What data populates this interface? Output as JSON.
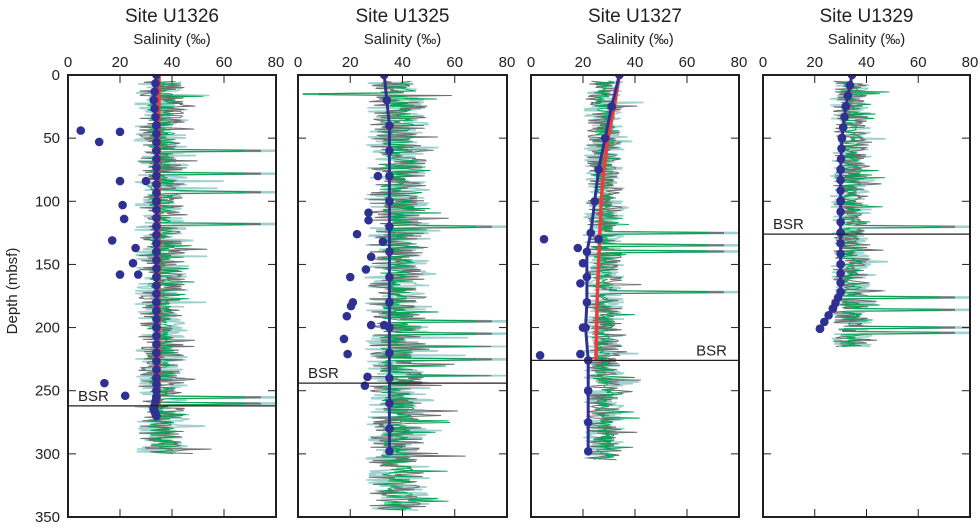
{
  "chart_data": [
    {
      "type": "scatter",
      "title": "Site U1326",
      "xlabel": "Salinity (‰)",
      "ylabel": "Depth (mbsf)",
      "xlim": [
        0,
        80
      ],
      "ylim": [
        350,
        0
      ],
      "xticks": [
        "0",
        "20",
        "40",
        "60",
        "80"
      ],
      "yticks": [
        "0",
        "50",
        "100",
        "150",
        "200",
        "250",
        "300",
        "350"
      ],
      "bsr": {
        "label": "BSR",
        "depth": 262,
        "label_side": "left"
      },
      "log_trace": {
        "depth_range": [
          5,
          300
        ],
        "base": 36,
        "spread": 9,
        "spikes": [
          [
            60,
            80
          ],
          [
            78,
            80
          ],
          [
            93,
            80
          ],
          [
            118,
            80
          ],
          [
            255,
            80
          ],
          [
            260,
            80
          ]
        ]
      },
      "red_line": [
        [
          0,
          35
        ],
        [
          262,
          35
        ]
      ],
      "blue_profile": [
        [
          0,
          34
        ],
        [
          20,
          33
        ],
        [
          40,
          34
        ],
        [
          60,
          34
        ],
        [
          80,
          34
        ],
        [
          100,
          34
        ],
        [
          120,
          34
        ],
        [
          140,
          34
        ],
        [
          160,
          34
        ],
        [
          180,
          34
        ],
        [
          200,
          34
        ],
        [
          220,
          34
        ],
        [
          240,
          34
        ],
        [
          255,
          34
        ],
        [
          265,
          33
        ],
        [
          270,
          34
        ]
      ],
      "outliers": [
        [
          4.9,
          44
        ],
        [
          12,
          53
        ],
        [
          20,
          45
        ],
        [
          20,
          84
        ],
        [
          30,
          84
        ],
        [
          21,
          103
        ],
        [
          21.6,
          114
        ],
        [
          17,
          131
        ],
        [
          26,
          137
        ],
        [
          25,
          149
        ],
        [
          20,
          158
        ],
        [
          27,
          158
        ],
        [
          14,
          244
        ],
        [
          22,
          254
        ]
      ]
    },
    {
      "type": "scatter",
      "title": "Site U1325",
      "xlabel": "Salinity (‰)",
      "ylabel": "",
      "xlim": [
        0,
        80
      ],
      "ylim": [
        350,
        0
      ],
      "xticks": [
        "0",
        "20",
        "40",
        "60",
        "80"
      ],
      "bsr": {
        "label": "BSR",
        "depth": 244,
        "label_side": "left"
      },
      "log_trace": {
        "depth_range": [
          5,
          345
        ],
        "base": 38,
        "spread": 11,
        "spikes": [
          [
            15,
            14
          ],
          [
            120,
            80
          ],
          [
            195,
            80
          ],
          [
            205,
            80
          ],
          [
            215,
            80
          ],
          [
            225,
            80
          ],
          [
            238,
            80
          ]
        ]
      },
      "red_line": [],
      "blue_profile": [
        [
          0,
          33
        ],
        [
          20,
          34
        ],
        [
          40,
          35
        ],
        [
          60,
          35
        ],
        [
          80,
          35
        ],
        [
          100,
          35
        ],
        [
          120,
          35
        ],
        [
          140,
          35
        ],
        [
          160,
          35
        ],
        [
          180,
          35
        ],
        [
          200,
          35
        ],
        [
          220,
          35
        ],
        [
          240,
          35
        ],
        [
          260,
          35
        ],
        [
          280,
          35
        ],
        [
          298,
          35
        ]
      ],
      "outliers": [
        [
          30.6,
          80
        ],
        [
          27,
          109
        ],
        [
          27,
          115
        ],
        [
          22.6,
          126
        ],
        [
          32.5,
          132
        ],
        [
          28,
          144
        ],
        [
          26,
          154
        ],
        [
          20,
          160
        ],
        [
          21,
          180
        ],
        [
          20.3,
          183
        ],
        [
          18.7,
          191
        ],
        [
          28,
          198
        ],
        [
          33,
          198
        ],
        [
          17.6,
          209
        ],
        [
          19,
          221
        ],
        [
          26.6,
          239
        ],
        [
          25.6,
          246
        ]
      ]
    },
    {
      "type": "scatter",
      "title": "Site U1327",
      "xlabel": "Salinity (‰)",
      "ylabel": "",
      "xlim": [
        0,
        80
      ],
      "ylim": [
        350,
        0
      ],
      "xticks": [
        "0",
        "20",
        "40",
        "60",
        "80"
      ],
      "bsr": {
        "label": "BSR",
        "depth": 226,
        "label_side": "right"
      },
      "log_trace": {
        "depth_range": [
          5,
          305
        ],
        "base": 28,
        "spread": 7,
        "spikes": [
          [
            125,
            80
          ],
          [
            135,
            80
          ],
          [
            140,
            80
          ],
          [
            172,
            80
          ]
        ]
      },
      "red_line": [
        [
          0,
          34
        ],
        [
          25,
          32
        ],
        [
          50,
          29.6
        ],
        [
          75,
          28
        ],
        [
          100,
          27
        ],
        [
          125,
          26.5
        ],
        [
          150,
          26
        ],
        [
          175,
          25.5
        ],
        [
          200,
          25.2
        ],
        [
          226,
          25
        ]
      ],
      "blue_profile": [
        [
          0,
          34
        ],
        [
          25,
          31
        ],
        [
          50,
          28.5
        ],
        [
          75,
          26
        ],
        [
          100,
          24.5
        ],
        [
          125,
          23
        ],
        [
          140,
          21.5
        ],
        [
          160,
          21.5
        ],
        [
          180,
          21.5
        ],
        [
          200,
          21
        ],
        [
          226,
          22
        ],
        [
          250,
          22
        ],
        [
          275,
          22
        ],
        [
          298,
          22
        ]
      ],
      "outliers": [
        [
          5,
          130
        ],
        [
          18,
          137
        ],
        [
          20,
          149
        ],
        [
          19,
          165
        ],
        [
          26,
          130
        ],
        [
          20,
          200
        ],
        [
          19,
          221
        ],
        [
          3.5,
          222
        ]
      ]
    },
    {
      "type": "scatter",
      "title": "Site U1329",
      "xlabel": "Salinity (‰)",
      "ylabel": "",
      "xlim": [
        0,
        80
      ],
      "ylim": [
        350,
        0
      ],
      "xticks": [
        "0",
        "20",
        "40",
        "60",
        "80"
      ],
      "bsr": {
        "label": "BSR",
        "depth": 126,
        "label_side": "left"
      },
      "log_trace": {
        "depth_range": [
          5,
          215
        ],
        "base": 34,
        "spread": 7,
        "spikes": [
          [
            120,
            80
          ],
          [
            176,
            80
          ],
          [
            186,
            80
          ],
          [
            200,
            80
          ],
          [
            204,
            80
          ]
        ]
      },
      "red_line": [],
      "blue_profile": [
        [
          0,
          34.4
        ],
        [
          25,
          32
        ],
        [
          50,
          30.5
        ],
        [
          75,
          30
        ],
        [
          100,
          30
        ],
        [
          125,
          30
        ],
        [
          150,
          30
        ],
        [
          172,
          30
        ],
        [
          185,
          27
        ],
        [
          201,
          22
        ]
      ],
      "outliers": []
    }
  ],
  "colors": {
    "blue": "#2e3192",
    "red": "#ee3b3b",
    "green": "#00a651",
    "gray": "#6d6e70",
    "teal": "#9fd1cf",
    "axis": "#231f20"
  }
}
